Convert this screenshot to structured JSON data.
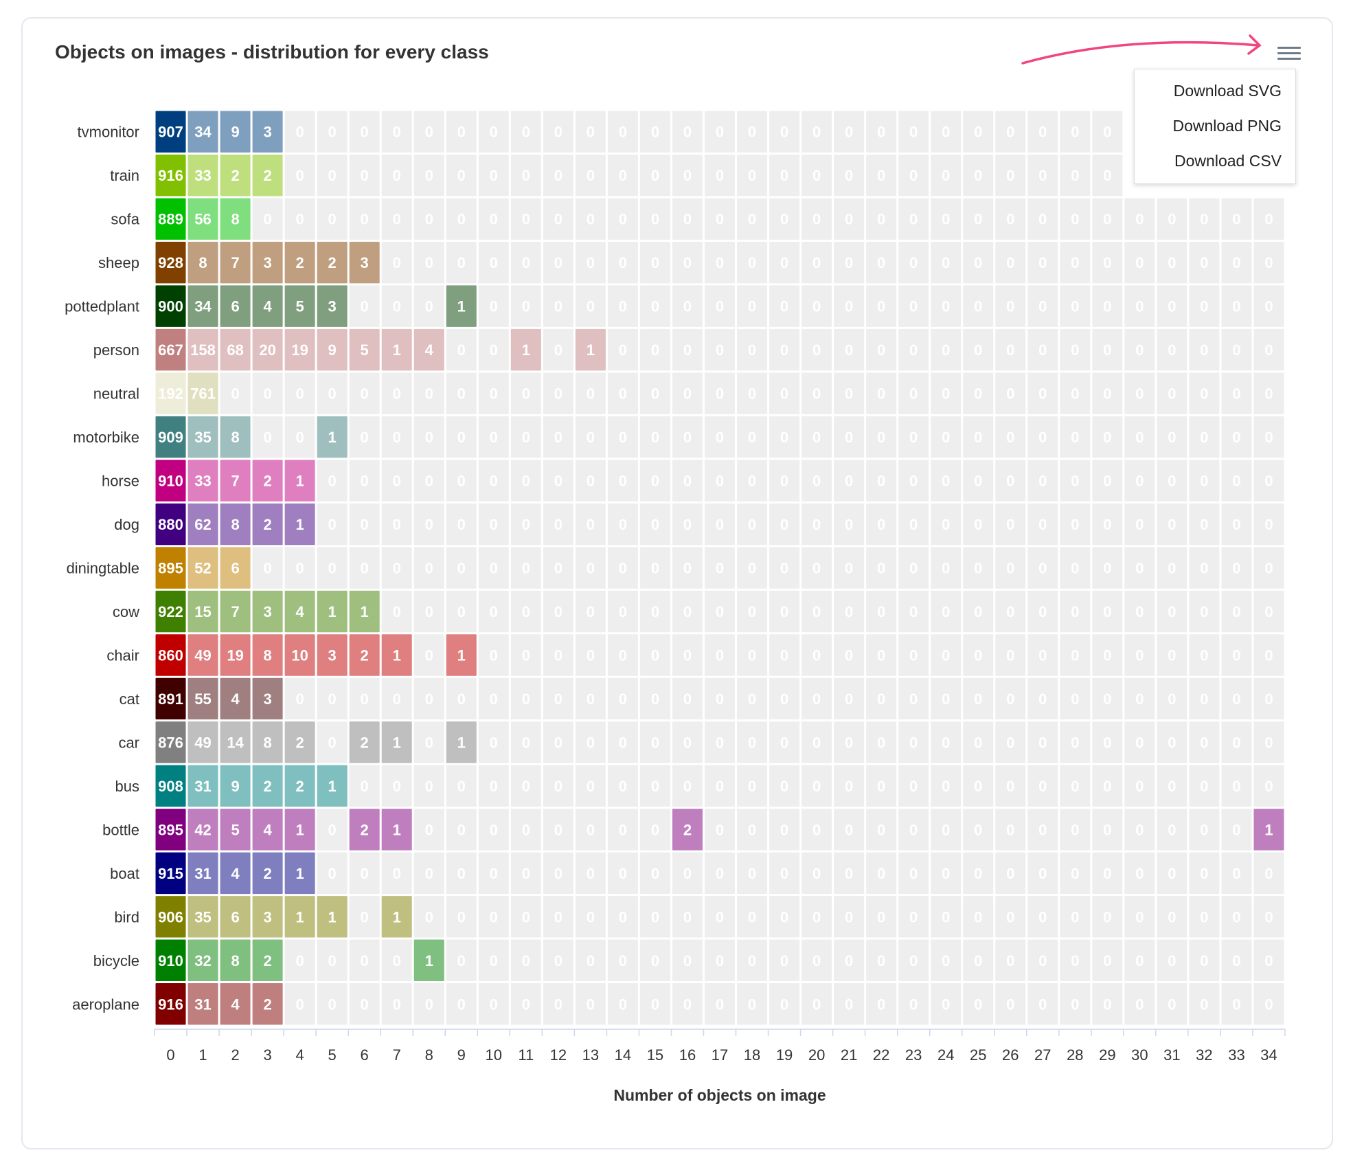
{
  "chart_data": {
    "type": "heatmap",
    "title": "Objects on images - distribution for every class",
    "xlabel": "Number of objects on image",
    "ylabel": "",
    "x": [
      0,
      1,
      2,
      3,
      4,
      5,
      6,
      7,
      8,
      9,
      10,
      11,
      12,
      13,
      14,
      15,
      16,
      17,
      18,
      19,
      20,
      21,
      22,
      23,
      24,
      25,
      26,
      27,
      28,
      29,
      30,
      31,
      32,
      33,
      34
    ],
    "zero_color": "#eeeeee",
    "rows": [
      {
        "name": "tvmonitor",
        "colors": [
          "#003f7f",
          "#7f9fbf"
        ],
        "values": [
          907,
          34,
          9,
          3
        ]
      },
      {
        "name": "train",
        "colors": [
          "#80c000",
          "#bfdf7f"
        ],
        "values": [
          916,
          33,
          2,
          2
        ]
      },
      {
        "name": "sofa",
        "colors": [
          "#00c000",
          "#7fdf7f"
        ],
        "values": [
          889,
          56,
          8
        ]
      },
      {
        "name": "sheep",
        "colors": [
          "#804000",
          "#bf9f7f"
        ],
        "values": [
          928,
          8,
          7,
          3,
          2,
          2,
          3
        ]
      },
      {
        "name": "pottedplant",
        "colors": [
          "#004000",
          "#7f9f7f"
        ],
        "values": [
          900,
          34,
          6,
          4,
          5,
          3,
          0,
          0,
          0,
          1
        ]
      },
      {
        "name": "person",
        "colors": [
          "#c08080",
          "#dfbfbf"
        ],
        "values": [
          667,
          158,
          68,
          20,
          19,
          9,
          5,
          1,
          4,
          0,
          0,
          1,
          0,
          1
        ]
      },
      {
        "name": "neutral",
        "colors": [
          "#ededd9",
          "#e0e0c0"
        ],
        "values": [
          192,
          761
        ]
      },
      {
        "name": "motorbike",
        "colors": [
          "#408080",
          "#9fbfbf"
        ],
        "values": [
          909,
          35,
          8,
          0,
          0,
          1
        ]
      },
      {
        "name": "horse",
        "colors": [
          "#c00080",
          "#df7fbf"
        ],
        "values": [
          910,
          33,
          7,
          2,
          1
        ]
      },
      {
        "name": "dog",
        "colors": [
          "#400080",
          "#9f7fbf"
        ],
        "values": [
          880,
          62,
          8,
          2,
          1
        ]
      },
      {
        "name": "diningtable",
        "colors": [
          "#c08000",
          "#dfbf7f"
        ],
        "values": [
          895,
          52,
          6
        ]
      },
      {
        "name": "cow",
        "colors": [
          "#408000",
          "#9fbf7f"
        ],
        "values": [
          922,
          15,
          7,
          3,
          4,
          1,
          1
        ]
      },
      {
        "name": "chair",
        "colors": [
          "#c00000",
          "#df7f7f"
        ],
        "values": [
          860,
          49,
          19,
          8,
          10,
          3,
          2,
          1,
          0,
          1
        ]
      },
      {
        "name": "cat",
        "colors": [
          "#400000",
          "#9f7f7f"
        ],
        "values": [
          891,
          55,
          4,
          3
        ]
      },
      {
        "name": "car",
        "colors": [
          "#808080",
          "#bfbfbf"
        ],
        "values": [
          876,
          49,
          14,
          8,
          2,
          0,
          2,
          1,
          0,
          1
        ]
      },
      {
        "name": "bus",
        "colors": [
          "#008080",
          "#7fbfbf"
        ],
        "values": [
          908,
          31,
          9,
          2,
          2,
          1
        ]
      },
      {
        "name": "bottle",
        "colors": [
          "#800080",
          "#bf7fbf"
        ],
        "values": [
          895,
          42,
          5,
          4,
          1,
          0,
          2,
          1,
          0,
          0,
          0,
          0,
          0,
          0,
          0,
          0,
          2,
          0,
          0,
          0,
          0,
          0,
          0,
          0,
          0,
          0,
          0,
          0,
          0,
          0,
          0,
          0,
          0,
          0,
          1
        ]
      },
      {
        "name": "boat",
        "colors": [
          "#000080",
          "#7f7fbf"
        ],
        "values": [
          915,
          31,
          4,
          2,
          1
        ]
      },
      {
        "name": "bird",
        "colors": [
          "#808000",
          "#bfbf7f"
        ],
        "values": [
          906,
          35,
          6,
          3,
          1,
          1,
          0,
          1
        ]
      },
      {
        "name": "bicycle",
        "colors": [
          "#008000",
          "#7fbf7f"
        ],
        "values": [
          910,
          32,
          8,
          2,
          0,
          0,
          0,
          0,
          1
        ]
      },
      {
        "name": "aeroplane",
        "colors": [
          "#800000",
          "#bf7f7f"
        ],
        "values": [
          916,
          31,
          4,
          2
        ]
      }
    ]
  },
  "menu": {
    "items": [
      "Download SVG",
      "Download PNG",
      "Download CSV"
    ],
    "icon": "hamburger-menu-icon"
  },
  "annotation": {
    "color": "#f0457f"
  }
}
